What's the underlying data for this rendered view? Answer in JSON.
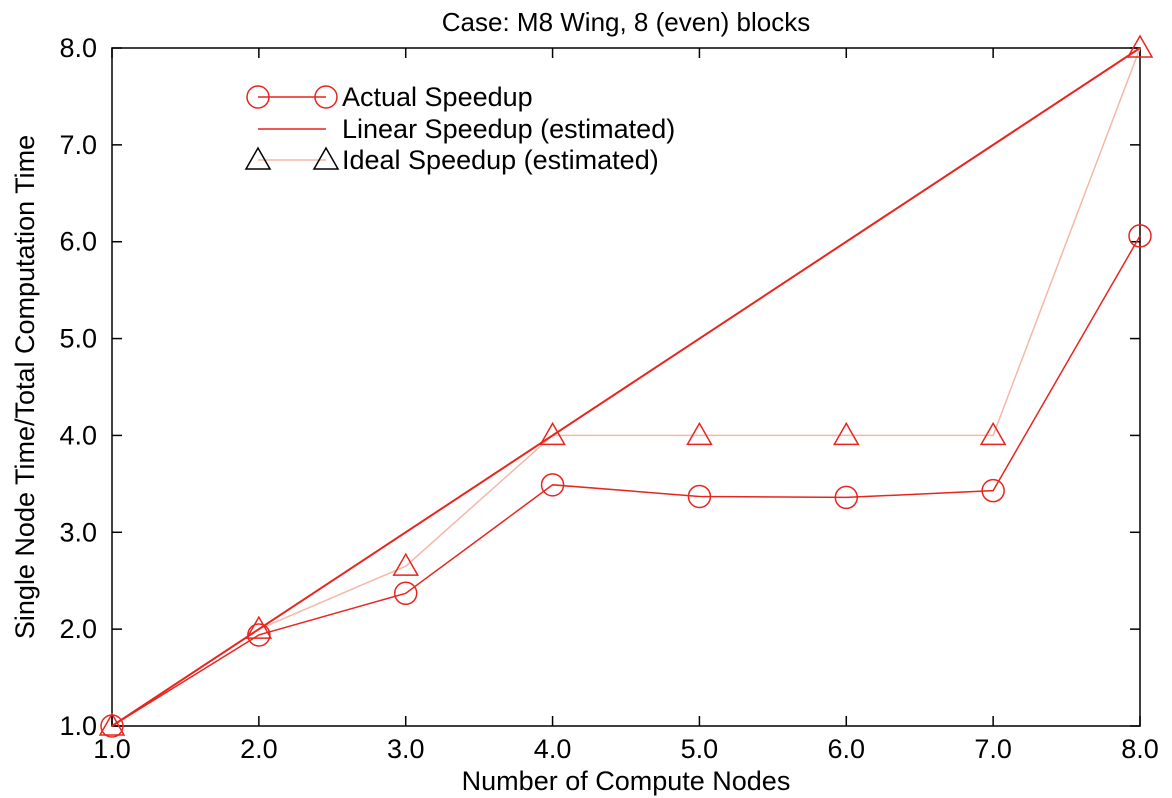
{
  "chart_data": {
    "type": "line",
    "title": "Case: M8 Wing, 8 (even) blocks",
    "xlabel": "Number of Compute Nodes",
    "ylabel": "Single Node Time/Total Computation Time",
    "xlim": [
      1,
      8
    ],
    "ylim": [
      1,
      8
    ],
    "x_ticks": [
      "1.0",
      "2.0",
      "3.0",
      "4.0",
      "5.0",
      "6.0",
      "7.0",
      "8.0"
    ],
    "y_ticks": [
      "1.0",
      "2.0",
      "3.0",
      "4.0",
      "5.0",
      "6.0",
      "7.0",
      "8.0"
    ],
    "grid": false,
    "legend_position": "top-left",
    "series": [
      {
        "name": "Actual Speedup",
        "marker": "circle",
        "color": "#e8251e",
        "x": [
          1,
          2,
          3,
          4,
          5,
          6,
          7,
          8
        ],
        "values": [
          1.0,
          1.94,
          2.37,
          3.49,
          3.37,
          3.36,
          3.43,
          6.06
        ]
      },
      {
        "name": "Linear Speedup (estimated)",
        "marker": "none",
        "color": "#e8251e",
        "x": [
          1,
          8
        ],
        "values": [
          1.0,
          8.0
        ]
      },
      {
        "name": "Ideal Speedup (estimated)",
        "marker": "triangle",
        "color": "#f5b7a8",
        "marker_color": "#e8251e",
        "legend_marker_color": "#000000",
        "x": [
          1,
          2,
          3,
          4,
          5,
          6,
          7,
          8
        ],
        "values": [
          1.0,
          2.0,
          2.65,
          4.0,
          4.0,
          4.0,
          4.0,
          8.0
        ]
      }
    ]
  }
}
